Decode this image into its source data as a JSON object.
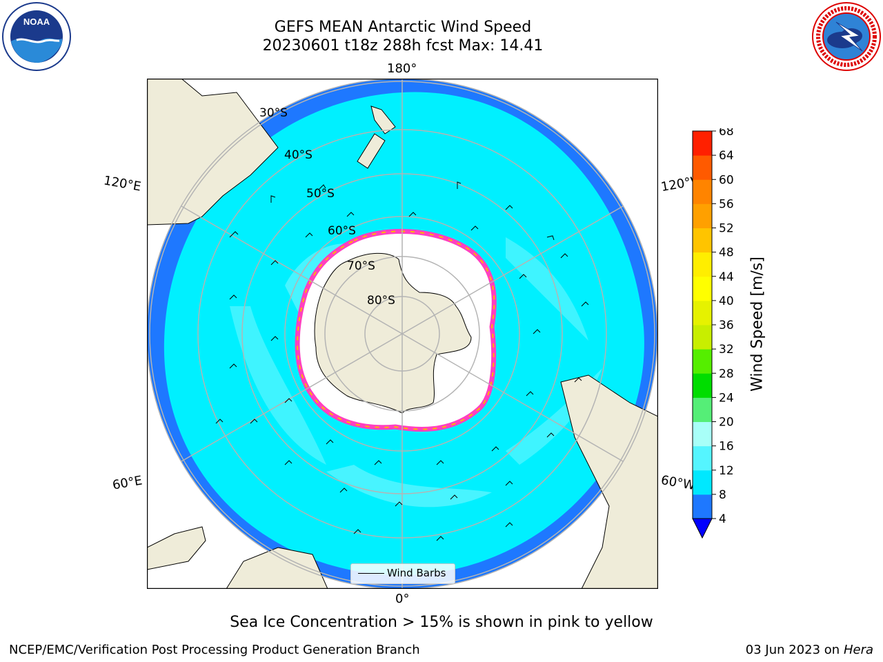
{
  "header": {
    "title_line1": "GEFS MEAN Antarctic Wind Speed",
    "title_line2": "20230601 t18z 288h fcst   Max: 14.41"
  },
  "map": {
    "lon_labels": {
      "top": "180°",
      "upper_left": "120°E",
      "upper_right": "120°W",
      "lower_left": "60°E",
      "lower_right": "60°W",
      "bottom": "0°"
    },
    "lat_labels": [
      "30°S",
      "40°S",
      "50°S",
      "60°S",
      "70°S",
      "80°S"
    ],
    "colors": {
      "ocean_dark": "#1e78ff",
      "ocean_mid": "#00f0ff",
      "ocean_light": "#5af5ff",
      "land": "#efecd9",
      "ice_edge": "#ff40c0"
    }
  },
  "legend": {
    "label": "Wind Barbs"
  },
  "colorbar": {
    "label": "Wind Speed [m/s]",
    "ticks": [
      "4",
      "8",
      "12",
      "16",
      "20",
      "24",
      "28",
      "32",
      "36",
      "40",
      "44",
      "48",
      "52",
      "56",
      "60",
      "64",
      "68"
    ],
    "colors": [
      "#1e78ff",
      "#00e8ff",
      "#55f5ff",
      "#a8fff8",
      "#55ee77",
      "#00dd00",
      "#55ee00",
      "#c8ee00",
      "#e6f200",
      "#ffff00",
      "#ffee00",
      "#ffc400",
      "#ffa000",
      "#ff8400",
      "#ff5a00",
      "#ff2000"
    ],
    "extend_color": "#0000ff"
  },
  "caption": "Sea Ice Concentration > 15% is shown in pink to yellow",
  "footer": {
    "left": "NCEP/EMC/Verification Post Processing Product Generation Branch",
    "right_prefix": "03 Jun 2023 on",
    "right_host": "Hera"
  }
}
